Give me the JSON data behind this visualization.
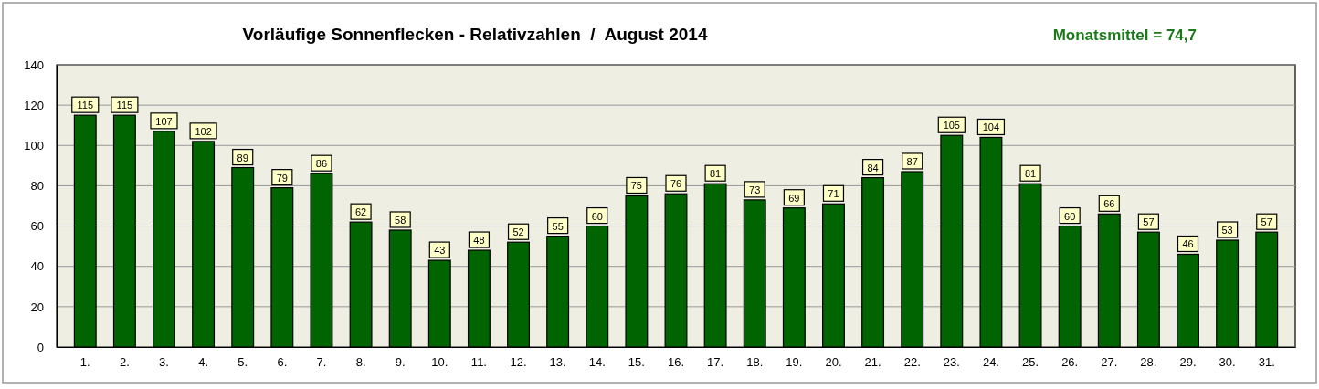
{
  "chart_data": {
    "type": "bar",
    "title": "Vorläufige Sonnenflecken - Relativzahlen  /  August 2014",
    "annotations": [
      "Monatsmittel = 74,7"
    ],
    "categories": [
      "1.",
      "2.",
      "3.",
      "4.",
      "5.",
      "6.",
      "7.",
      "8.",
      "9.",
      "10.",
      "11.",
      "12.",
      "13.",
      "14.",
      "15.",
      "16.",
      "17.",
      "18.",
      "19.",
      "20.",
      "21.",
      "22.",
      "23.",
      "24.",
      "25.",
      "26.",
      "27.",
      "28.",
      "29.",
      "30.",
      "31."
    ],
    "values": [
      115,
      115,
      107,
      102,
      89,
      79,
      86,
      62,
      58,
      43,
      48,
      52,
      55,
      60,
      75,
      76,
      81,
      73,
      69,
      71,
      84,
      87,
      105,
      104,
      81,
      60,
      66,
      57,
      46,
      53,
      57
    ],
    "color": "#006400",
    "ylim": [
      0,
      140
    ],
    "yticks": [
      0,
      20,
      40,
      60,
      80,
      100,
      120,
      140
    ],
    "grid": "y",
    "data_labels": true
  }
}
